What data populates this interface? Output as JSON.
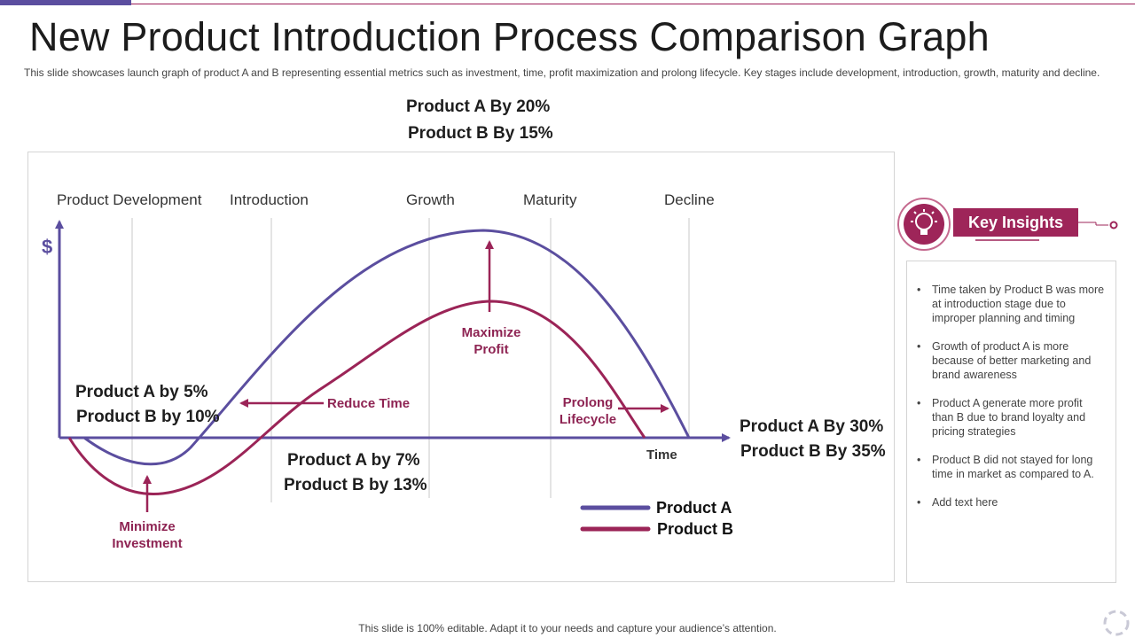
{
  "title": "New Product Introduction Process Comparison Graph",
  "subtitle": "This slide showcases launch graph of product A and B representing essential metrics such as investment, time, profit maximization and prolong lifecycle. Key stages include development, introduction, growth, maturity and decline.",
  "top_metric": {
    "line1": "Product A By 20%",
    "line2": "Product B By 15%"
  },
  "stages": [
    "Product Development",
    "Introduction",
    "Growth",
    "Maturity",
    "Decline"
  ],
  "y_axis_label": "$",
  "x_axis_label": "Time",
  "metrics": {
    "left": {
      "line1": "Product A by 5%",
      "line2": "Product B by 10%"
    },
    "middle": {
      "line1": "Product A by 7%",
      "line2": "Product B by 13%"
    },
    "right": {
      "line1": "Product A By 30%",
      "line2": "Product B By 35%"
    }
  },
  "annotations": {
    "minimize": {
      "line1": "Minimize",
      "line2": "Investment"
    },
    "reduce_time": "Reduce Time",
    "maximize": {
      "line1": "Maximize",
      "line2": "Profit"
    },
    "prolong": {
      "line1": "Prolong",
      "line2": "Lifecycle"
    }
  },
  "legend": [
    {
      "label": "Product A",
      "color": "#5b4e9f"
    },
    {
      "label": "Product B",
      "color": "#9b2457"
    }
  ],
  "key_insights": {
    "header": "Key Insights",
    "icon": "lightbulb-gear-icon",
    "items": [
      "Time taken by Product B was more at introduction stage due to improper planning and timing",
      "Growth of product A is more because of better marketing and brand awareness",
      "Product A generate more profit than B due to brand loyalty and pricing strategies",
      "Product B did not stayed for long time in market as compared to A.",
      "Add text here"
    ]
  },
  "footer": "This slide is 100% editable. Adapt it to your needs and capture your audience’s attention.",
  "colors": {
    "purple": "#5b4e9f",
    "maroon": "#9b2457",
    "accent": "#9e2559"
  }
}
